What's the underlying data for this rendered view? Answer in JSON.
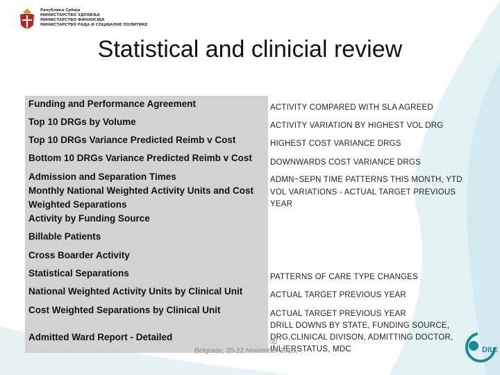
{
  "ministry": {
    "lines": [
      "Република Србија",
      "МИНИСТАРСТВО ЗДРАВЉА",
      "МИНИСТАРСТВО ФИНАНСИЈА",
      "МИНИСТАРСТВО РАДА И СОЦИЈАЛНЕ ПОЛИТИКЕ"
    ]
  },
  "slide": {
    "title": "Statistical and clinicial review"
  },
  "left_items": [
    "Funding and Performance Agreement",
    "Top 10 DRGs by Volume",
    "Top 10 DRGs Variance Predicted Reimb v Cost",
    "Bottom 10 DRGs Variance Predicted Reimb v Cost",
    "Admission and Separation Times",
    "Monthly National Weighted Activity Units and Cost",
    "Weighted Separations",
    "Activity by Funding Source",
    "Billable Patients",
    "Cross Boarder Activity",
    "Statistical Separations",
    "National Weighted Activity Units by Clinical Unit",
    "Cost Weighted Separations by Clinical Unit",
    "Admitted Ward Report - Detailed"
  ],
  "right_items": [
    "ACTIVITY COMPARED WITH SLA AGREED",
    "ACTIVITY VARIATION BY HIGHEST VOL DRG",
    "HIGHEST COST VARIANCE DRGS",
    "DOWNWARDS COST VARIANCE DRGS",
    "ADMN~SEPN TIME PATTERNS THIS MONTH, YTD",
    "VOL VARIATIONS - ACTUAL TARGET PREVIOUS",
    "YEAR",
    "PATTERNS OF CARE TYPE CHANGES",
    "ACTUAL TARGET PREVIOUS YEAR",
    "ACTUAL TARGET PREVIOUS YEAR",
    "DRILL DOWNS BY STATE, FUNDING SOURCE,",
    "DRG,CLINICAL DIVISON, ADMITTING DOCTOR,",
    "INLIERSTATUS, MDC"
  ],
  "footer": {
    "line1": "op",
    "line2": "Belgrade, 20-22 November 2013."
  },
  "dils_logo": {
    "text": "DILS"
  },
  "colors": {
    "swoosh": "#d9eef2",
    "panel": "#d2d2d2",
    "dils_teal": "#1a8a9a"
  }
}
